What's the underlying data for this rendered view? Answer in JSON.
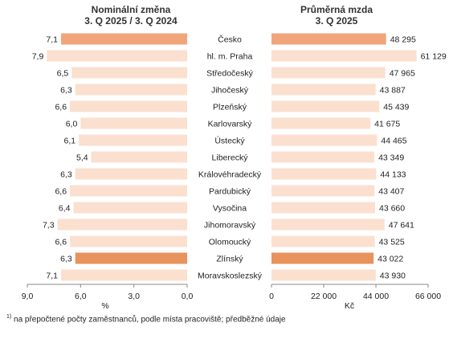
{
  "chart_data": [
    {
      "type": "bar",
      "orientation": "horizontal",
      "title_lines": [
        "Nominální změna",
        "3. Q 2025 / 3. Q 2024"
      ],
      "categories": [
        "Česko",
        "hl. m. Praha",
        "Středočeský",
        "Jihočeský",
        "Plzeňský",
        "Karlovarský",
        "Ústecký",
        "Liberecký",
        "Královéhradecký",
        "Pardubický",
        "Vysočina",
        "Jihomoravský",
        "Olomoucký",
        "Zlínský",
        "Moravskoslezský"
      ],
      "values": [
        7.1,
        7.9,
        6.5,
        6.3,
        6.6,
        6.0,
        6.1,
        5.4,
        6.3,
        6.6,
        6.4,
        7.3,
        6.6,
        6.3,
        7.1
      ],
      "labels": [
        "7,1",
        "7,9",
        "6,5",
        "6,3",
        "6,6",
        "6,0",
        "6,1",
        "5,4",
        "6,3",
        "6,6",
        "6,4",
        "7,3",
        "6,6",
        "6,3",
        "7,1"
      ],
      "xlim": [
        0,
        9
      ],
      "reversed": true,
      "ticks": [
        9,
        6,
        3,
        0
      ],
      "tick_labels": [
        "9,0",
        "6,0",
        "3,0",
        "0,0"
      ],
      "xlabel": "%",
      "highlight": {
        "Česko": "#f2a57b",
        "Zlínský": "#e8925e"
      }
    },
    {
      "type": "bar",
      "orientation": "horizontal",
      "title_lines": [
        "Průměrná mzda",
        "3. Q 2025"
      ],
      "categories": [
        "Česko",
        "hl. m. Praha",
        "Středočeský",
        "Jihočeský",
        "Plzeňský",
        "Karlovarský",
        "Ústecký",
        "Liberecký",
        "Královéhradecký",
        "Pardubický",
        "Vysočina",
        "Jihomoravský",
        "Olomoucký",
        "Zlínský",
        "Moravskoslezský"
      ],
      "values": [
        48295,
        61129,
        47965,
        43887,
        45439,
        41675,
        44465,
        43349,
        44133,
        43407,
        43660,
        47641,
        43525,
        43022,
        43930
      ],
      "labels": [
        "48 295",
        "61 129",
        "47 965",
        "43 887",
        "45 439",
        "41 675",
        "44 465",
        "43 349",
        "44 133",
        "43 407",
        "43 660",
        "47 641",
        "43 525",
        "43 022",
        "43 930"
      ],
      "xlim": [
        0,
        66000
      ],
      "ticks": [
        0,
        22000,
        44000,
        66000
      ],
      "tick_labels": [
        "0",
        "22 000",
        "44 000",
        "66 000"
      ],
      "xlabel": "Kč",
      "highlight": {
        "Česko": "#f2a57b",
        "Zlínský": "#e8925e"
      }
    }
  ],
  "colors": {
    "bar": "#fbe0cf",
    "axis": "#888888"
  },
  "footnote": {
    "sup": "1)",
    "text": " na přepočtené počty zaměstnanců, podle místa pracoviště; předběžné údaje"
  }
}
